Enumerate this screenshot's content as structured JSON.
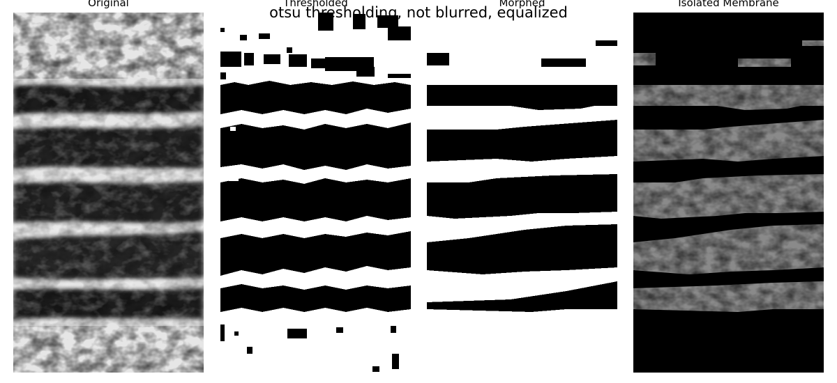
{
  "figure": {
    "suptitle": "otsu thresholding, not blurred, equalized",
    "panels": [
      {
        "title": "Original"
      },
      {
        "title": "Thresholded"
      },
      {
        "title": "Morphed"
      },
      {
        "title": "Isolated Membrane"
      }
    ]
  },
  "colors": {
    "background": "#ffffff",
    "mask_on": "#000000",
    "mask_off": "#ffffff"
  },
  "image_content": {
    "membrane_band_count": 5,
    "colormap": "grayscale"
  }
}
